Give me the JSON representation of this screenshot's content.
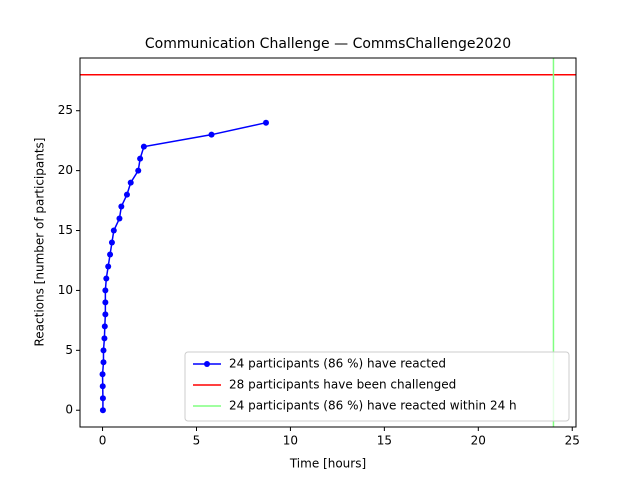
{
  "chart_data": {
    "type": "line",
    "title": "Communication Challenge — CommsChallenge2020",
    "x_label": "Time [hours]",
    "y_label": "Reactions [number of participants]",
    "series": [
      {
        "name": "24 participants (86 %) have reacted",
        "color": "#0000ff",
        "x": [
          0.02,
          0.02,
          0.01,
          0.0,
          0.05,
          0.05,
          0.1,
          0.12,
          0.15,
          0.15,
          0.15,
          0.2,
          0.3,
          0.4,
          0.5,
          0.6,
          0.9,
          1.0,
          1.3,
          1.5,
          1.9,
          2.0,
          2.2,
          5.8,
          8.7
        ],
        "values": [
          0,
          1,
          2,
          3,
          4,
          5,
          6,
          7,
          8,
          9,
          10,
          11,
          12,
          13,
          14,
          15,
          16,
          17,
          18,
          19,
          20,
          21,
          22,
          23,
          24
        ]
      }
    ],
    "hline": {
      "name": "28 participants have been challenged",
      "color": "#ff0000",
      "value": 28
    },
    "vline": {
      "name": "24 participants (86 %) have reacted within 24 h",
      "color": "#80ff80",
      "value": 24
    },
    "xlim": [
      -1.2,
      25.2
    ],
    "xticks": [
      0,
      5,
      10,
      15,
      20,
      25
    ],
    "ylim": [
      -1.4,
      29.4
    ],
    "yticks": [
      0,
      5,
      10,
      15,
      20,
      25
    ],
    "legend": "lower right"
  }
}
